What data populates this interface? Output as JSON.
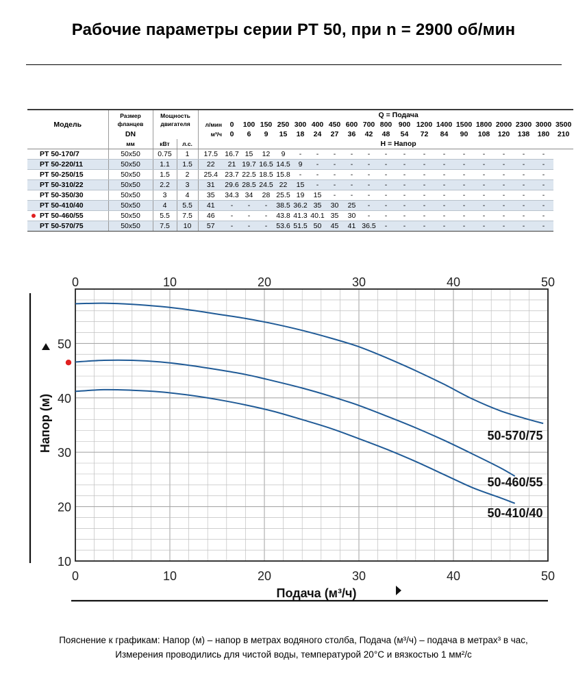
{
  "page": {
    "title": "Рабочие параметры серии PT 50, при n = 2900 об/мин",
    "footnote_line1": "Пояснение к графикам: Напор (м) – напор в метрах водяного столба, Подача (м³/ч) – подача в метрах³ в час,",
    "footnote_line2": "Измерения проводились для чистой воды, температурой 20°C и вязкостью 1 мм²/с"
  },
  "table": {
    "model_header": "Модель",
    "flange_header": "Размер фланцев",
    "flange_dn": "DN",
    "flange_unit": "мм",
    "power_header": "Мощность двигателя",
    "power_kw": "кВт",
    "power_hp": "л.с.",
    "q_header": "Q = Подача",
    "h_header": "H = Напор",
    "lpm_label": "л/мин",
    "m3h_label": "м³/ч",
    "flow_lpm": [
      "0",
      "100",
      "150",
      "250",
      "300",
      "400",
      "450",
      "600",
      "700",
      "800",
      "900",
      "1200",
      "1400",
      "1500",
      "1800",
      "2000",
      "2300",
      "3000",
      "3500"
    ],
    "flow_m3h": [
      "0",
      "6",
      "9",
      "15",
      "18",
      "24",
      "27",
      "36",
      "42",
      "48",
      "54",
      "72",
      "84",
      "90",
      "108",
      "120",
      "138",
      "180",
      "210"
    ],
    "rows": [
      {
        "model": "PT 50-170/7",
        "flange": "50x50",
        "kw": "0.75",
        "hp": "1",
        "h": [
          "17.5",
          "16.7",
          "15",
          "12",
          "9",
          "-",
          "-",
          "-",
          "-",
          "-",
          "-",
          "-",
          "-",
          "-",
          "-",
          "-",
          "-",
          "-",
          "-"
        ]
      },
      {
        "model": "PT 50-220/11",
        "flange": "50x50",
        "kw": "1.1",
        "hp": "1.5",
        "h": [
          "22",
          "21",
          "19.7",
          "16.5",
          "14.5",
          "9",
          "-",
          "-",
          "-",
          "-",
          "-",
          "-",
          "-",
          "-",
          "-",
          "-",
          "-",
          "-",
          "-"
        ]
      },
      {
        "model": "PT 50-250/15",
        "flange": "50x50",
        "kw": "1.5",
        "hp": "2",
        "h": [
          "25.4",
          "23.7",
          "22.5",
          "18.5",
          "15.8",
          "-",
          "-",
          "-",
          "-",
          "-",
          "-",
          "-",
          "-",
          "-",
          "-",
          "-",
          "-",
          "-",
          "-"
        ]
      },
      {
        "model": "PT 50-310/22",
        "flange": "50x50",
        "kw": "2.2",
        "hp": "3",
        "h": [
          "31",
          "29.6",
          "28.5",
          "24.5",
          "22",
          "15",
          "-",
          "-",
          "-",
          "-",
          "-",
          "-",
          "-",
          "-",
          "-",
          "-",
          "-",
          "-",
          "-"
        ]
      },
      {
        "model": "PT 50-350/30",
        "flange": "50x50",
        "kw": "3",
        "hp": "4",
        "h": [
          "35",
          "34.3",
          "34",
          "28",
          "25.5",
          "19",
          "15",
          "-",
          "-",
          "-",
          "-",
          "-",
          "-",
          "-",
          "-",
          "-",
          "-",
          "-",
          "-"
        ]
      },
      {
        "model": "PT 50-410/40",
        "flange": "50x50",
        "kw": "4",
        "hp": "5.5",
        "h": [
          "41",
          "-",
          "-",
          "-",
          "38.5",
          "36.2",
          "35",
          "30",
          "25",
          "-",
          "-",
          "-",
          "-",
          "-",
          "-",
          "-",
          "-",
          "-",
          "-"
        ]
      },
      {
        "model": "PT 50-460/55",
        "flange": "50x50",
        "kw": "5.5",
        "hp": "7.5",
        "h": [
          "46",
          "-",
          "-",
          "-",
          "43.8",
          "41.3",
          "40.1",
          "35",
          "30",
          "-",
          "-",
          "-",
          "-",
          "-",
          "-",
          "-",
          "-",
          "-",
          "-"
        ],
        "marked": true
      },
      {
        "model": "PT 50-570/75",
        "flange": "50x50",
        "kw": "7.5",
        "hp": "10",
        "h": [
          "57",
          "-",
          "-",
          "-",
          "53.6",
          "51.5",
          "50",
          "45",
          "41",
          "36.5",
          "-",
          "-",
          "-",
          "-",
          "-",
          "-",
          "-",
          "-",
          "-"
        ]
      }
    ]
  },
  "colors": {
    "curve": "#1f5a96",
    "marker": "#e02020",
    "grid": "#bfbfbf",
    "row_alt": "#dde6f0"
  },
  "chart_data": {
    "type": "line",
    "xlabel": "Подача (м³/ч)",
    "ylabel": "Напор (м)",
    "xlim": [
      0,
      50
    ],
    "ylim": [
      10,
      60
    ],
    "x_ticks": [
      "0",
      "10",
      "20",
      "30",
      "40",
      "50"
    ],
    "y_ticks": [
      "10",
      "20",
      "30",
      "40",
      "50"
    ],
    "grid": true,
    "minor_grid_step_x": 2,
    "minor_grid_step_y": 2,
    "marker_y": 46.5,
    "series": [
      {
        "name": "50-570/75",
        "x": [
          0,
          3,
          6,
          9,
          12,
          15,
          18,
          21,
          24,
          27,
          30,
          33,
          36,
          39,
          42,
          45,
          48,
          49.5
        ],
        "y": [
          57.3,
          57.4,
          57.2,
          56.8,
          56.2,
          55.4,
          54.6,
          53.6,
          52.4,
          51.0,
          49.4,
          47.3,
          45.0,
          42.5,
          39.8,
          37.6,
          36.0,
          35.3
        ]
      },
      {
        "name": "50-460/55",
        "x": [
          0,
          3,
          6,
          9,
          12,
          15,
          18,
          21,
          24,
          27,
          30,
          33,
          36,
          39,
          42,
          45,
          46.5
        ],
        "y": [
          46.6,
          46.9,
          46.9,
          46.6,
          46.0,
          45.2,
          44.3,
          43.1,
          41.8,
          40.3,
          38.6,
          36.6,
          34.5,
          32.2,
          29.7,
          27.1,
          25.6
        ]
      },
      {
        "name": "50-410/40",
        "x": [
          0,
          3,
          6,
          9,
          12,
          15,
          18,
          21,
          24,
          27,
          30,
          33,
          36,
          39,
          42,
          45,
          46.5
        ],
        "y": [
          41.2,
          41.5,
          41.4,
          41.1,
          40.5,
          39.7,
          38.7,
          37.5,
          36.0,
          34.4,
          32.5,
          30.5,
          28.3,
          25.9,
          23.5,
          21.6,
          20.6
        ]
      }
    ]
  }
}
